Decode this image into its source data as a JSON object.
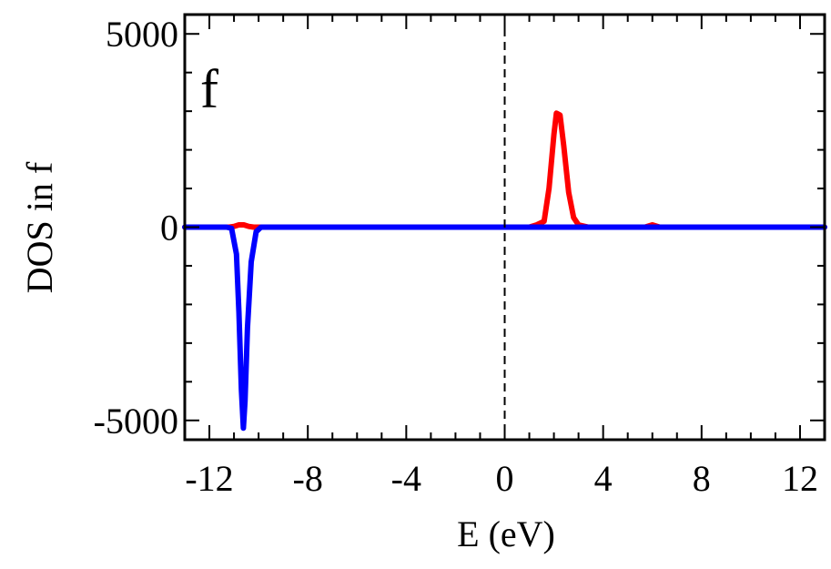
{
  "chart_data": {
    "type": "line",
    "panel_label": "f",
    "xlabel": "E (eV)",
    "ylabel": "DOS in f",
    "xlim": [
      -13,
      13
    ],
    "ylim": [
      -5500,
      5500
    ],
    "x_ticks": [
      -12,
      -8,
      -4,
      0,
      4,
      8,
      12
    ],
    "x_tick_labels": [
      "-12",
      "-8",
      "-4",
      "0",
      "4",
      "8",
      "12"
    ],
    "y_ticks": [
      -5000,
      0,
      5000
    ],
    "y_tick_labels": [
      "-5000",
      "0",
      "5000"
    ],
    "fermi_level_x": 0,
    "series": [
      {
        "color": "#ff0000",
        "points": [
          [
            -13,
            0
          ],
          [
            -11.2,
            0
          ],
          [
            -11,
            20
          ],
          [
            -10.8,
            60
          ],
          [
            -10.6,
            60
          ],
          [
            -10.4,
            20
          ],
          [
            -10.2,
            0
          ],
          [
            0,
            0
          ],
          [
            1.0,
            0
          ],
          [
            1.3,
            60
          ],
          [
            1.6,
            150
          ],
          [
            1.8,
            1000
          ],
          [
            2.0,
            2400
          ],
          [
            2.1,
            2950
          ],
          [
            2.25,
            2900
          ],
          [
            2.4,
            2100
          ],
          [
            2.6,
            900
          ],
          [
            2.8,
            250
          ],
          [
            3.0,
            60
          ],
          [
            3.4,
            0
          ],
          [
            5.7,
            0
          ],
          [
            6.0,
            60
          ],
          [
            6.3,
            0
          ],
          [
            13,
            0
          ]
        ]
      },
      {
        "color": "#0000ff",
        "points": [
          [
            -13,
            0
          ],
          [
            -11.3,
            0
          ],
          [
            -11.1,
            -30
          ],
          [
            -10.9,
            -700
          ],
          [
            -10.8,
            -2200
          ],
          [
            -10.7,
            -4200
          ],
          [
            -10.62,
            -5200
          ],
          [
            -10.55,
            -4500
          ],
          [
            -10.45,
            -2600
          ],
          [
            -10.3,
            -900
          ],
          [
            -10.1,
            -120
          ],
          [
            -9.9,
            0
          ],
          [
            13,
            0
          ]
        ]
      }
    ]
  }
}
